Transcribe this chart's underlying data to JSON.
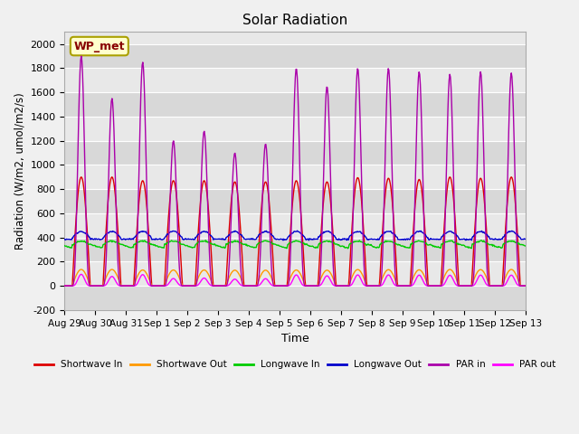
{
  "title": "Solar Radiation",
  "xlabel": "Time",
  "ylabel": "Radiation (W/m2, umol/m2/s)",
  "ylim": [
    -200,
    2100
  ],
  "yticks": [
    -200,
    0,
    200,
    400,
    600,
    800,
    1000,
    1200,
    1400,
    1600,
    1800,
    2000
  ],
  "xtick_labels": [
    "Aug 29",
    "Aug 30",
    "Aug 31",
    "Sep 1",
    "Sep 2",
    "Sep 3",
    "Sep 4",
    "Sep 5",
    "Sep 6",
    "Sep 7",
    "Sep 8",
    "Sep 9",
    "Sep 10",
    "Sep 11",
    "Sep 12",
    "Sep 13"
  ],
  "n_days": 15,
  "station_label": "WP_met",
  "colors": {
    "shortwave_in": "#dd0000",
    "shortwave_out": "#ff9900",
    "longwave_in": "#00cc00",
    "longwave_out": "#0000cc",
    "par_in": "#aa00aa",
    "par_out": "#ff00ff"
  },
  "legend_labels": [
    "Shortwave In",
    "Shortwave Out",
    "Longwave In",
    "Longwave Out",
    "PAR in",
    "PAR out"
  ],
  "fig_facecolor": "#f0f0f0",
  "ax_facecolor": "#e8e8e8",
  "grid_color": "#ffffff"
}
